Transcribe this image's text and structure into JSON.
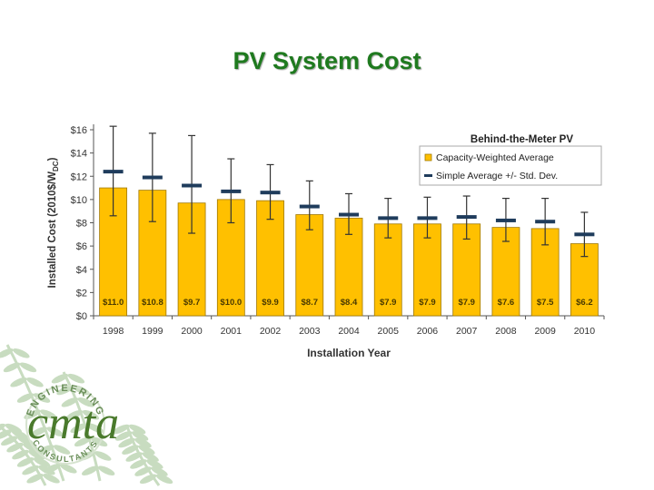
{
  "slide": {
    "title": "PV System Cost"
  },
  "colors": {
    "title": "#1f7a1f",
    "bar": "#ffc000",
    "bar_edge": "#a07800",
    "marker": "#1f3c5c",
    "fern": "#c8dcc0",
    "logo": "#4a7a2c"
  },
  "chart_data": {
    "type": "bar",
    "title": "Behind-the-Meter PV",
    "xlabel": "Installation Year",
    "ylabel": "Installed Cost (2010$/W",
    "ylabel_sub": "DC",
    "ylabel_end": ")",
    "ylim": [
      0,
      16
    ],
    "yticks": [
      0,
      2,
      4,
      6,
      8,
      10,
      12,
      14,
      16
    ],
    "ytick_labels": [
      "$0",
      "$2",
      "$4",
      "$6",
      "$8",
      "$10",
      "$12",
      "$14",
      "$16"
    ],
    "categories": [
      "1998",
      "1999",
      "2000",
      "2001",
      "2002",
      "2003",
      "2004",
      "2005",
      "2006",
      "2007",
      "2008",
      "2009",
      "2010"
    ],
    "series": [
      {
        "name": "Capacity-Weighted Average",
        "values": [
          11.0,
          10.8,
          9.7,
          10.0,
          9.9,
          8.7,
          8.4,
          7.9,
          7.9,
          7.9,
          7.6,
          7.5,
          6.2
        ],
        "labels": [
          "$11.0",
          "$10.8",
          "$9.7",
          "$10.0",
          "$9.9",
          "$8.7",
          "$8.4",
          "$7.9",
          "$7.9",
          "$7.9",
          "$7.6",
          "$7.5",
          "$6.2"
        ]
      },
      {
        "name": "Simple Average +/- Std. Dev.",
        "values": [
          12.4,
          11.9,
          11.2,
          10.7,
          10.6,
          9.4,
          8.7,
          8.4,
          8.4,
          8.5,
          8.2,
          8.1,
          7.0
        ],
        "err_low": [
          8.6,
          8.1,
          7.1,
          8.0,
          8.3,
          7.4,
          7.0,
          6.7,
          6.7,
          6.6,
          6.4,
          6.1,
          5.1
        ],
        "err_high": [
          16.3,
          15.7,
          15.5,
          13.5,
          13.0,
          11.6,
          10.5,
          10.1,
          10.2,
          10.3,
          10.1,
          10.1,
          8.9
        ]
      }
    ],
    "legend_position": "top-right",
    "grid": false
  },
  "logo": {
    "text": "cmta",
    "ring_top": "ENGINEERING",
    "ring_bottom": "CONSULTANTS"
  }
}
